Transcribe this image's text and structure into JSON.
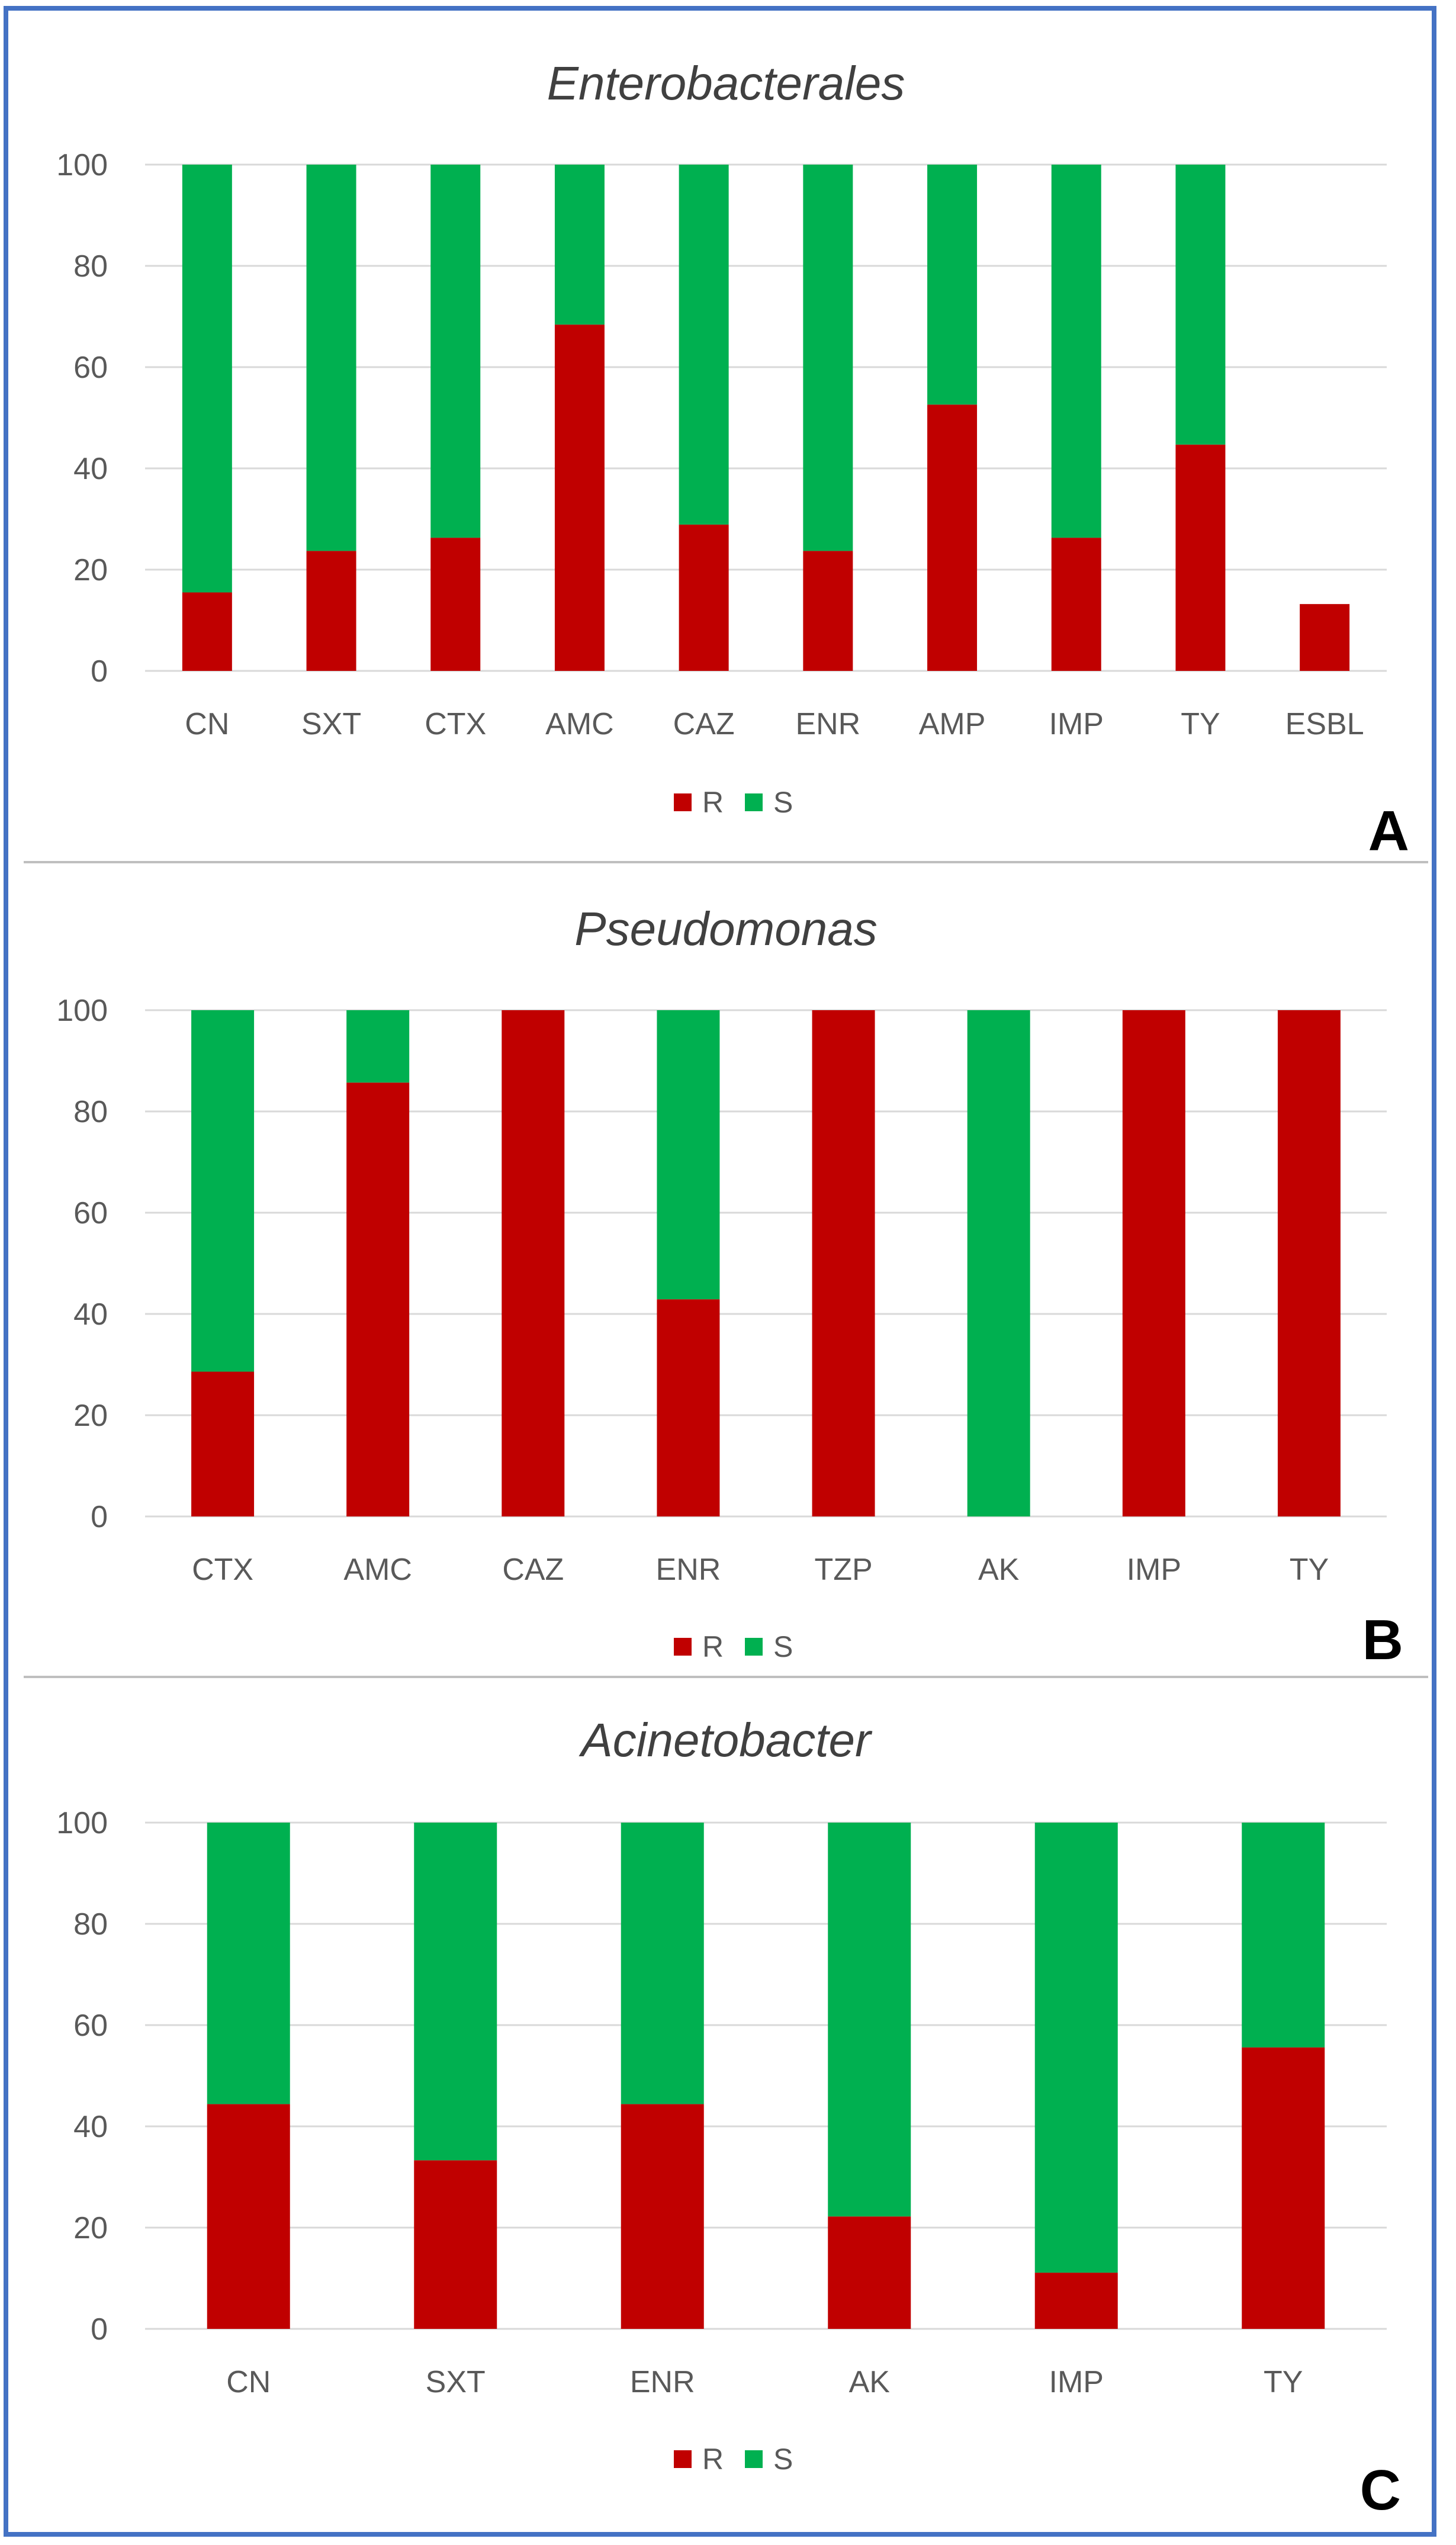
{
  "colors": {
    "R": "#c00000",
    "S": "#00b050",
    "frame": "#4472c4",
    "divider": "#bfbfbf"
  },
  "chart_data": [
    {
      "panel": "A",
      "type": "bar",
      "stacked": true,
      "title": "Enterobacterales",
      "categories": [
        "CN",
        "SXT",
        "CTX",
        "AMC",
        "CAZ",
        "ENR",
        "AMP",
        "IMP",
        "TY",
        "ESBL"
      ],
      "series": [
        {
          "name": "R",
          "values": [
            15.5,
            23.7,
            26.3,
            68.4,
            28.9,
            23.7,
            52.6,
            26.3,
            44.7,
            13.2
          ]
        },
        {
          "name": "S",
          "values": [
            84.5,
            76.3,
            73.7,
            31.6,
            71.1,
            76.3,
            47.4,
            73.7,
            55.3,
            0
          ]
        }
      ],
      "yticks": [
        "0",
        "20",
        "40",
        "60",
        "80",
        "100"
      ],
      "ylim": [
        0,
        100
      ],
      "grid": true,
      "legend": [
        "R",
        "S"
      ],
      "legend_position": "bottom"
    },
    {
      "panel": "B",
      "type": "bar",
      "stacked": true,
      "title": "Pseudomonas",
      "categories": [
        "CTX",
        "AMC",
        "CAZ",
        "ENR",
        "TZP",
        "AK",
        "IMP",
        "TY"
      ],
      "series": [
        {
          "name": "R",
          "values": [
            28.6,
            85.7,
            100,
            42.9,
            100,
            0,
            100,
            100
          ]
        },
        {
          "name": "S",
          "values": [
            71.4,
            14.3,
            0,
            57.1,
            0,
            100,
            0,
            0
          ]
        }
      ],
      "yticks": [
        "0",
        "20",
        "40",
        "60",
        "80",
        "100"
      ],
      "ylim": [
        0,
        100
      ],
      "grid": true,
      "legend": [
        "R",
        "S"
      ],
      "legend_position": "bottom"
    },
    {
      "panel": "C",
      "type": "bar",
      "stacked": true,
      "title": "Acinetobacter",
      "categories": [
        "CN",
        "SXT",
        "ENR",
        "AK",
        "IMP",
        "TY"
      ],
      "series": [
        {
          "name": "R",
          "values": [
            44.4,
            33.3,
            44.4,
            22.2,
            11.1,
            55.6
          ]
        },
        {
          "name": "S",
          "values": [
            55.6,
            66.7,
            55.6,
            77.8,
            88.9,
            44.4
          ]
        }
      ],
      "yticks": [
        "0",
        "20",
        "40",
        "60",
        "80",
        "100"
      ],
      "ylim": [
        0,
        100
      ],
      "grid": true,
      "legend": [
        "R",
        "S"
      ],
      "legend_position": "bottom"
    }
  ]
}
